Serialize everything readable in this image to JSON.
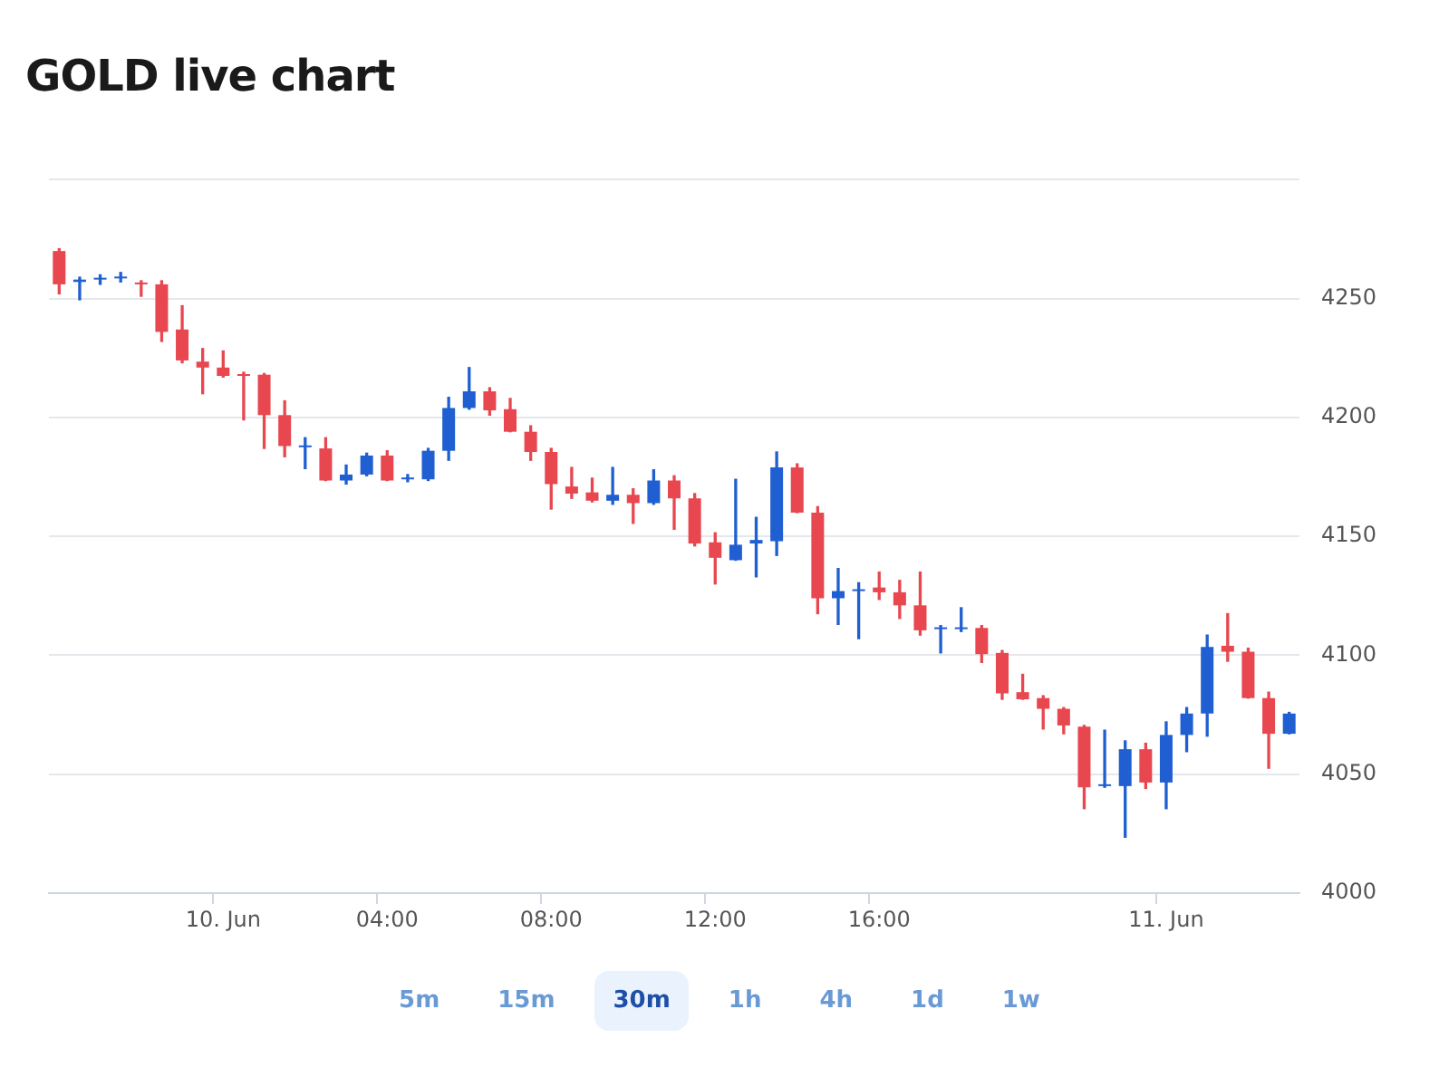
{
  "chart_data": {
    "type": "candlestick",
    "title": "GOLD live chart",
    "categories": [
      null,
      null,
      null,
      null,
      null,
      null,
      null,
      null,
      "10. Jun",
      null,
      null,
      null,
      null,
      null,
      null,
      null,
      "04:00",
      null,
      null,
      null,
      null,
      null,
      null,
      null,
      "08:00",
      null,
      null,
      null,
      null,
      null,
      null,
      null,
      "12:00",
      null,
      null,
      null,
      null,
      null,
      null,
      null,
      "16:00",
      null,
      null,
      null,
      null,
      null,
      null,
      null,
      null,
      null,
      null,
      null,
      null,
      null,
      "11. Jun",
      null,
      null,
      null,
      null,
      null,
      null
    ],
    "ohlc": [
      [
        4270,
        4271,
        4252,
        4256
      ],
      [
        4257,
        4259,
        4249.5,
        4258
      ],
      [
        4258,
        4260,
        4256,
        4258.5
      ],
      [
        4258.5,
        4261,
        4257,
        4259
      ],
      [
        4256.5,
        4257.5,
        4251,
        4256
      ],
      [
        4256,
        4257.5,
        4232,
        4236
      ],
      [
        4237,
        4247,
        4223,
        4224
      ],
      [
        4223.5,
        4229,
        4210,
        4221
      ],
      [
        4221,
        4228,
        4217,
        4217.5
      ],
      [
        4218,
        4219,
        4199,
        4217.5
      ],
      [
        4218,
        4218.5,
        4187,
        4201
      ],
      [
        4201,
        4207,
        4183.5,
        4188
      ],
      [
        4187.5,
        4191.5,
        4178.5,
        4188
      ],
      [
        4187,
        4191.5,
        4173.5,
        4173.5
      ],
      [
        4173.5,
        4180,
        4172,
        4176
      ],
      [
        4176,
        4185,
        4175.5,
        4184
      ],
      [
        4184,
        4186,
        4173.5,
        4173.5
      ],
      [
        4174,
        4176,
        4173,
        4174.5
      ],
      [
        4174,
        4187,
        4173.5,
        4186
      ],
      [
        4186,
        4208.5,
        4182,
        4204
      ],
      [
        4204,
        4221,
        4203.5,
        4211
      ],
      [
        4211,
        4212.5,
        4201,
        4203
      ],
      [
        4203.5,
        4208,
        4194,
        4194
      ],
      [
        4194,
        4196.5,
        4182,
        4185.5
      ],
      [
        4185.5,
        4187,
        4161.5,
        4172
      ],
      [
        4171,
        4179,
        4166,
        4168
      ],
      [
        4168.5,
        4174.5,
        4164.5,
        4165
      ],
      [
        4165,
        4179,
        4163.5,
        4167.5
      ],
      [
        4167.5,
        4170,
        4155.5,
        4164
      ],
      [
        4164,
        4178,
        4163.5,
        4173.5
      ],
      [
        4173.5,
        4175.5,
        4153,
        4166
      ],
      [
        4166,
        4168,
        4146,
        4147
      ],
      [
        4147.5,
        4151.5,
        4130,
        4141
      ],
      [
        4140,
        4174,
        4140,
        4146.5
      ],
      [
        4147,
        4158,
        4133,
        4148.5
      ],
      [
        4148,
        4185.5,
        4142,
        4179
      ],
      [
        4179,
        4180.5,
        4160,
        4160
      ],
      [
        4160,
        4162.5,
        4117.5,
        4124
      ],
      [
        4124,
        4136.5,
        4113,
        4127
      ],
      [
        4127,
        4130.5,
        4107,
        4127.5
      ],
      [
        4128.5,
        4135,
        4123.5,
        4126.5
      ],
      [
        4126.5,
        4131.5,
        4115.5,
        4121
      ],
      [
        4121,
        4135,
        4108.5,
        4110.5
      ],
      [
        4111,
        4112.5,
        4101,
        4111.5
      ],
      [
        4111,
        4120,
        4110,
        4111.5
      ],
      [
        4111.5,
        4112.5,
        4097,
        4100.5
      ],
      [
        4101,
        4102,
        4081.5,
        4084
      ],
      [
        4084.5,
        4092,
        4081.5,
        4081.5
      ],
      [
        4082,
        4083,
        4069,
        4077.5
      ],
      [
        4077.5,
        4078,
        4067,
        4070.5
      ],
      [
        4070,
        4070.5,
        4035.5,
        4044.5
      ],
      [
        4045,
        4068.5,
        4044.5,
        4045.5
      ],
      [
        4045,
        4064,
        4023.5,
        4060.5
      ],
      [
        4060.5,
        4063,
        4044,
        4046.5
      ],
      [
        4046.5,
        4072,
        4035.5,
        4066.5
      ],
      [
        4066.5,
        4078,
        4059.5,
        4075.5
      ],
      [
        4075.5,
        4108.5,
        4066,
        4103.5
      ],
      [
        4104,
        4117.5,
        4097.5,
        4101.5
      ],
      [
        4101.5,
        4103,
        4082,
        4082
      ],
      [
        4082,
        4084.5,
        4052.5,
        4067
      ],
      [
        4067,
        4076,
        4067,
        4075.5
      ]
    ],
    "colors": [
      "#e8474f",
      "#1f5fd1",
      "#1f5fd1",
      "#1f5fd1",
      "#e8474f",
      "#e8474f",
      "#e8474f",
      "#e8474f",
      "#e8474f",
      "#e8474f",
      "#e8474f",
      "#e8474f",
      "#1f5fd1",
      "#e8474f",
      "#1f5fd1",
      "#1f5fd1",
      "#e8474f",
      "#1f5fd1",
      "#1f5fd1",
      "#1f5fd1",
      "#1f5fd1",
      "#e8474f",
      "#e8474f",
      "#e8474f",
      "#e8474f",
      "#e8474f",
      "#e8474f",
      "#1f5fd1",
      "#e8474f",
      "#1f5fd1",
      "#e8474f",
      "#e8474f",
      "#e8474f",
      "#1f5fd1",
      "#1f5fd1",
      "#1f5fd1",
      "#e8474f",
      "#e8474f",
      "#1f5fd1",
      "#1f5fd1",
      "#e8474f",
      "#e8474f",
      "#e8474f",
      "#1f5fd1",
      "#1f5fd1",
      "#e8474f",
      "#e8474f",
      "#e8474f",
      "#e8474f",
      "#e8474f",
      "#e8474f",
      "#1f5fd1",
      "#1f5fd1",
      "#e8474f",
      "#1f5fd1",
      "#1f5fd1",
      "#1f5fd1",
      "#e8474f",
      "#e8474f",
      "#e8474f",
      "#1f5fd1"
    ],
    "ylim": [
      4000,
      4300
    ],
    "yticks": [
      4000,
      4050,
      4100,
      4150,
      4200,
      4250,
      {
        "value": 4300,
        "label": null
      }
    ],
    "grid": "y",
    "legend": false,
    "annotations": [
      "5m",
      "15m",
      "30m",
      "1h",
      "4h",
      "1d",
      "1w"
    ]
  }
}
